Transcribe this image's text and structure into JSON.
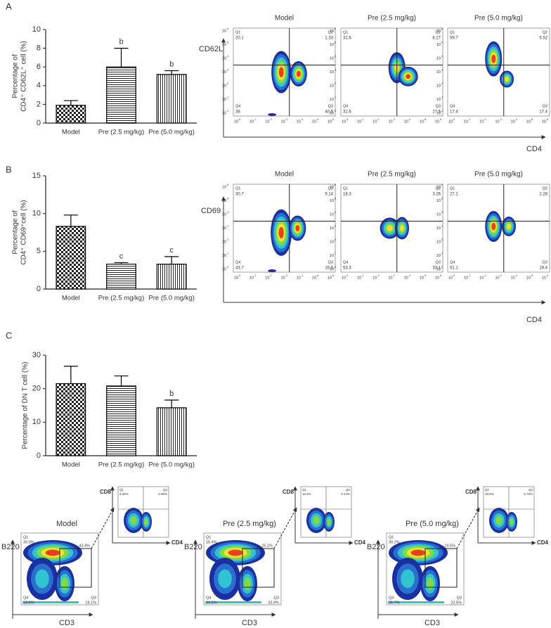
{
  "panel_labels": [
    "A",
    "B",
    "C"
  ],
  "chart_data": [
    {
      "type": "bar",
      "y_label": [
        "Percentage of",
        "CD4⁺ CD62L⁺ cell (%)"
      ],
      "categories": [
        "Model",
        "Pre (2.5 mg/kg)",
        "Pre (5.0 mg/kg)"
      ],
      "values": [
        1.9,
        6.0,
        5.2
      ],
      "errors": [
        0.5,
        2.0,
        0.4
      ],
      "annotations": [
        null,
        "b",
        "b"
      ],
      "patterns": [
        "checker",
        "horizontal",
        "vertical"
      ],
      "color": "#000000",
      "ylim": [
        0,
        10
      ],
      "yticks": [
        0,
        2,
        4,
        6,
        8,
        10
      ]
    },
    {
      "type": "bar",
      "y_label": [
        "Percentage of",
        "CD4⁺ CD69⁺cell (%)"
      ],
      "categories": [
        "Model",
        "Pre (2.5 mg/kg)",
        "Pre (5.0 mg/kg)"
      ],
      "values": [
        8.3,
        3.3,
        3.3
      ],
      "errors": [
        1.5,
        0.2,
        1.0
      ],
      "annotations": [
        null,
        "c",
        "c"
      ],
      "patterns": [
        "checker",
        "horizontal",
        "vertical"
      ],
      "color": "#000000",
      "ylim": [
        0,
        15
      ],
      "yticks": [
        0,
        5,
        10,
        15
      ]
    },
    {
      "type": "bar",
      "y_label": [
        "Percentage of DN T cell (%)"
      ],
      "categories": [
        "Model",
        "Pre (2.5 mg/kg)",
        "Pre (5.0 mg/kg)"
      ],
      "values": [
        21.5,
        20.8,
        14.3
      ],
      "errors": [
        5.2,
        3.0,
        2.3
      ],
      "annotations": [
        null,
        null,
        "b"
      ],
      "patterns": [
        "checker",
        "horizontal",
        "vertical"
      ],
      "color": "#000000",
      "ylim": [
        0,
        30
      ],
      "yticks": [
        0,
        10,
        20,
        30
      ]
    }
  ],
  "flow_panels": [
    {
      "y_axis": "CD62L",
      "x_axis": "CD4",
      "log_base": 10,
      "decades": [
        0,
        1,
        2,
        3,
        4,
        5,
        6
      ],
      "quadrant_names": [
        "Q1",
        "Q2",
        "Q4",
        "Q3"
      ],
      "plots": [
        {
          "title": "Model",
          "values": [
            20.1,
            1.33,
            38.0,
            40.5
          ]
        },
        {
          "title": "Pre (2.5 mg/kg)",
          "values": [
            31.6,
            8.27,
            32.6,
            27.5
          ]
        },
        {
          "title": "Pre (5.0 mg/kg)",
          "values": [
            59.7,
            5.52,
            17.4,
            17.4
          ]
        }
      ]
    },
    {
      "y_axis": "CD69",
      "x_axis": "CD4",
      "log_base": 10,
      "decades": [
        0,
        1,
        2,
        3,
        4,
        5,
        6
      ],
      "quadrant_names": [
        "Q1",
        "Q2",
        "Q4",
        "Q3"
      ],
      "plots": [
        {
          "title": "Model",
          "values": [
            30.7,
            9.14,
            43.7,
            16.5
          ]
        },
        {
          "title": "Pre (2.5 mg/kg)",
          "values": [
            18.3,
            3.26,
            53.3,
            33.1
          ]
        },
        {
          "title": "Pre (5.0 mg/kg)",
          "values": [
            27.1,
            2.28,
            51.1,
            19.4
          ]
        }
      ]
    }
  ],
  "gating": {
    "x_axis": "CD3",
    "y_axis": "B220",
    "inset_x": "CD4",
    "inset_y": "CD8",
    "main_quadrants": [
      "Q1",
      "Q4",
      "Q3"
    ],
    "inset_quadrants": [
      "Q1",
      "Q2"
    ],
    "groups": [
      {
        "title": "Model",
        "main": [
          "33.0%",
          "18.5%",
          "19.1%"
        ],
        "gate": "43.4%",
        "inset": [
          "4.46%",
          "2.96%"
        ]
      },
      {
        "title": "Pre (2.5 mg/kg)",
        "main": [
          "15.4%",
          "34.2%",
          "33.9%"
        ],
        "gate": "25.1%",
        "inset": [
          "13.4%",
          "2.44%"
        ]
      },
      {
        "title": "Pre (5.0 mg/kg)",
        "main": [
          "30.2%",
          "26.7%",
          "23.5%"
        ],
        "gate": "19.5%",
        "inset": [
          "18.8%",
          "5.75%"
        ]
      }
    ]
  }
}
